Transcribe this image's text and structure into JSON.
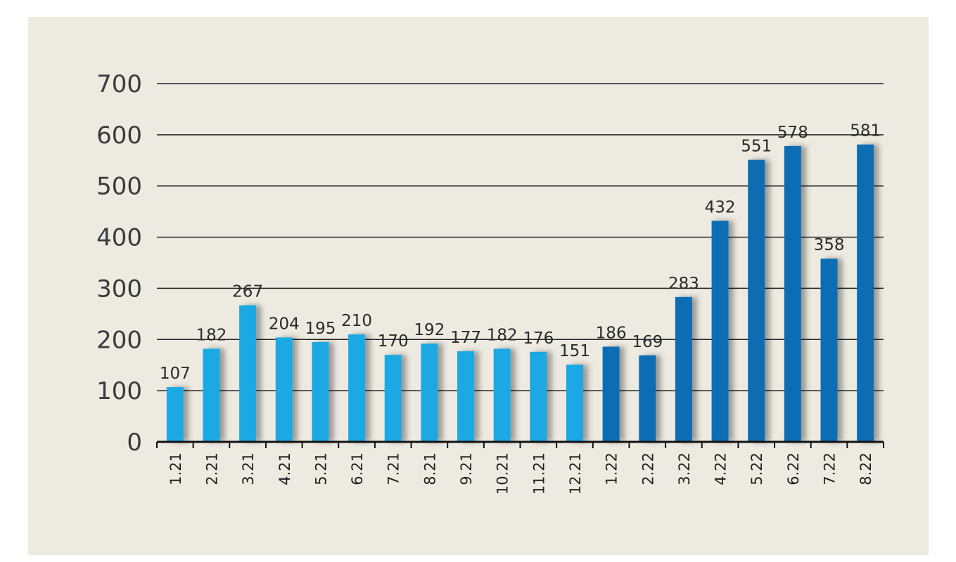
{
  "chart_data": {
    "type": "bar",
    "title": "",
    "xlabel": "",
    "ylabel": "",
    "ylim": [
      0,
      700
    ],
    "yticks": [
      0,
      100,
      200,
      300,
      400,
      500,
      600,
      700
    ],
    "grid": true,
    "categories": [
      "1.21",
      "2.21",
      "3.21",
      "4.21",
      "5.21",
      "6.21",
      "7.21",
      "8.21",
      "9.21",
      "10.21",
      "11.21",
      "12.21",
      "1.22",
      "2.22",
      "3.22",
      "4.22",
      "5.22",
      "6.22",
      "7.22",
      "8.22"
    ],
    "values": [
      107,
      182,
      267,
      204,
      195,
      210,
      170,
      192,
      177,
      182,
      176,
      151,
      186,
      169,
      283,
      432,
      551,
      578,
      358,
      581
    ],
    "data_labels": [
      "107",
      "182",
      "267",
      "204",
      "195",
      "210",
      "170",
      "192",
      "177",
      "182",
      "176",
      "151",
      "186",
      "169",
      "283",
      "432",
      "551",
      "578",
      "358",
      "581"
    ],
    "colors": {
      "bars_2021": "#1fa8e3",
      "bars_2022": "#0a6db4",
      "gridline": "#222222",
      "background": "#edeae1"
    }
  }
}
